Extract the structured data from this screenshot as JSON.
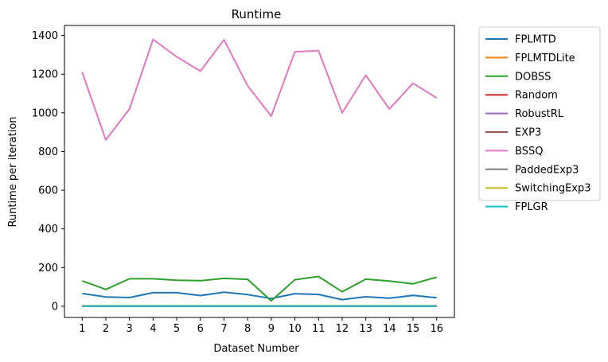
{
  "chart_data": {
    "type": "line",
    "title": "Runtime",
    "xlabel": "Dataset Number",
    "ylabel": "Runtime per iteration",
    "x": [
      1,
      2,
      3,
      4,
      5,
      6,
      7,
      8,
      9,
      10,
      11,
      12,
      13,
      14,
      15,
      16
    ],
    "xlim": [
      0.25,
      16.75
    ],
    "ylim": [
      -58,
      1452
    ],
    "yticks": [
      0,
      200,
      400,
      600,
      800,
      1000,
      1200,
      1400
    ],
    "grid": false,
    "legend_position": "outside-right",
    "series": [
      {
        "name": "FPLMTD",
        "color": "#1f77b4",
        "values": [
          66,
          48,
          45,
          70,
          70,
          55,
          73,
          60,
          40,
          65,
          61,
          34,
          49,
          42,
          56,
          44
        ]
      },
      {
        "name": "FPLMTDLite",
        "color": "#ff7f0e",
        "values": [
          2,
          2,
          2,
          2,
          2,
          2,
          2,
          2,
          2,
          2,
          2,
          2,
          2,
          2,
          2,
          2
        ]
      },
      {
        "name": "DOBSS",
        "color": "#2ca02c",
        "values": [
          131,
          87,
          142,
          142,
          134,
          132,
          144,
          139,
          28,
          137,
          154,
          75,
          140,
          130,
          116,
          150
        ]
      },
      {
        "name": "Random",
        "color": "#d62728",
        "values": [
          1,
          1,
          1,
          1,
          1,
          1,
          1,
          1,
          1,
          1,
          1,
          1,
          1,
          1,
          1,
          1
        ]
      },
      {
        "name": "RobustRL",
        "color": "#9467bd",
        "values": [
          1,
          1,
          1,
          1,
          1,
          1,
          1,
          1,
          1,
          1,
          1,
          1,
          1,
          1,
          1,
          1
        ]
      },
      {
        "name": "EXP3",
        "color": "#8c564b",
        "values": [
          1,
          1,
          1,
          1,
          1,
          1,
          1,
          1,
          1,
          1,
          1,
          1,
          1,
          1,
          1,
          1
        ]
      },
      {
        "name": "BSSQ",
        "color": "#e377c2",
        "values": [
          1210,
          860,
          1020,
          1380,
          1290,
          1216,
          1378,
          1140,
          983,
          1316,
          1322,
          1000,
          1195,
          1020,
          1153,
          1077
        ]
      },
      {
        "name": "PaddedExp3",
        "color": "#7f7f7f",
        "values": [
          1,
          1,
          1,
          1,
          1,
          1,
          1,
          1,
          1,
          1,
          1,
          1,
          1,
          1,
          1,
          1
        ]
      },
      {
        "name": "SwitchingExp3",
        "color": "#bcbd22",
        "values": [
          1,
          1,
          1,
          1,
          1,
          1,
          1,
          1,
          1,
          1,
          1,
          1,
          1,
          1,
          1,
          1
        ]
      },
      {
        "name": "FPLGR",
        "color": "#17becf",
        "values": [
          1,
          1,
          1,
          1,
          1,
          1,
          1,
          1,
          1,
          1,
          1,
          1,
          1,
          1,
          1,
          1
        ]
      }
    ]
  }
}
